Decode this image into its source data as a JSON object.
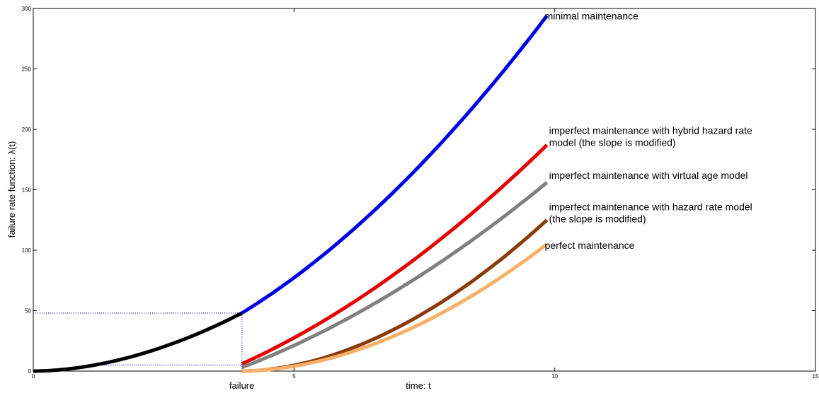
{
  "chart_data": {
    "type": "line",
    "xlabel": "time: t",
    "ylabel": "failure rate function: λ(t)",
    "xlim": [
      0,
      15
    ],
    "ylim": [
      0,
      300
    ],
    "xticks": [
      0,
      5,
      10,
      15
    ],
    "yticks": [
      0,
      50,
      100,
      150,
      200,
      250,
      300
    ],
    "grid": false,
    "failure_time": 4,
    "failure_label": "failure",
    "guide_color": "#6a6ad8",
    "guides": {
      "upper": 48,
      "lower": 5
    },
    "series": [
      {
        "color": "#000000",
        "t0": 0,
        "t1": 4,
        "offset": 0,
        "y0": 0,
        "y1": 48,
        "power": 1.85
      },
      {
        "color": "#0000e6",
        "t0": 4,
        "t1": 9.85,
        "offset": 0,
        "y0": 48,
        "y1": 294,
        "power": 1.85
      },
      {
        "color": "#e60000",
        "t0": 4,
        "t1": 9.85,
        "offset": 0,
        "y0": 6,
        "y1": 187,
        "power": 1.85
      },
      {
        "color": "#808080",
        "t0": 4,
        "t1": 9.85,
        "offset": 0,
        "y0": 3,
        "y1": 156,
        "power": 1.85
      },
      {
        "color": "#8b3a0a",
        "t0": 4,
        "t1": 9.85,
        "offset": 4,
        "y0": 0,
        "y1": 125,
        "power": 1.85
      },
      {
        "color": "#f7b067",
        "t0": 4,
        "t1": 9.85,
        "offset": 4,
        "y0": 0,
        "y1": 105,
        "power": 1.85
      }
    ],
    "annotations": [
      {
        "lines": [
          "minimal maintenance"
        ],
        "x": 9.85,
        "y": 294
      },
      {
        "lines": [
          "imperfect maintenance with hybrid hazard rate",
          "model (the slope is modified)"
        ],
        "x": 9.85,
        "y": 199
      },
      {
        "lines": [
          "imperfect maintenance with virtual age model"
        ],
        "x": 9.85,
        "y": 162
      },
      {
        "lines": [
          "imperfect maintenance with hazard rate model",
          "(the slope is modified)"
        ],
        "x": 9.85,
        "y": 136
      },
      {
        "lines": [
          "perfect maintenance"
        ],
        "x": 9.85,
        "y": 104
      }
    ]
  }
}
